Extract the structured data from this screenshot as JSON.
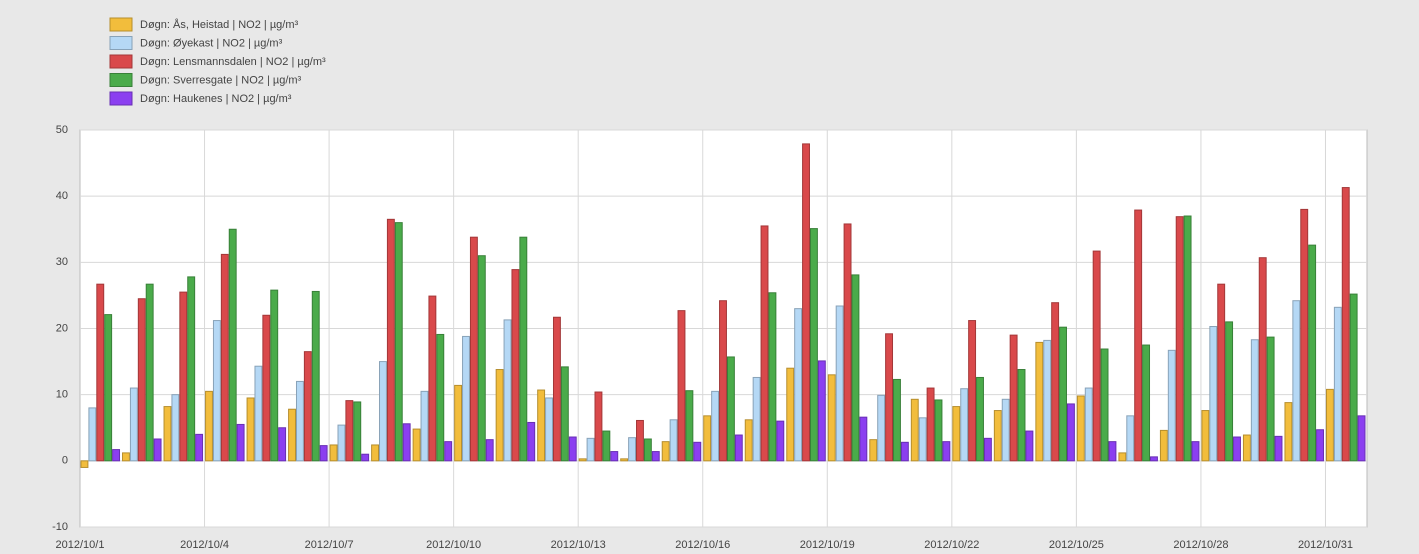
{
  "chart_data": {
    "type": "bar",
    "categories": [
      "2012/10/1",
      null,
      null,
      "2012/10/4",
      null,
      null,
      "2012/10/7",
      null,
      null,
      "2012/10/10",
      null,
      null,
      "2012/10/13",
      null,
      null,
      "2012/10/16",
      null,
      null,
      "2012/10/19",
      null,
      null,
      "2012/10/22",
      null,
      null,
      "2012/10/25",
      null,
      null,
      "2012/10/28",
      null,
      null,
      "2012/10/31"
    ],
    "series": [
      {
        "name": "Døgn: Ås, Heistad | NO2 | µg/m³",
        "color": "#f2bd3c",
        "values": [
          -1,
          1.2,
          8.2,
          10.5,
          9.5,
          7.8,
          2.4,
          2.4,
          4.8,
          11.4,
          13.8,
          10.7,
          0.3,
          0.3,
          2.9,
          6.8,
          6.2,
          14,
          13,
          3.2,
          9.3,
          8.2,
          7.6,
          17.9,
          9.8,
          1.2,
          4.6,
          7.6,
          3.9,
          8.8,
          10.8
        ]
      },
      {
        "name": "Døgn: Øyekast | NO2 | µg/m³",
        "color": "#b5d8f5",
        "values": [
          8,
          11,
          10,
          21.2,
          14.3,
          12,
          5.4,
          15,
          10.5,
          18.8,
          21.3,
          9.5,
          3.4,
          3.5,
          6.2,
          10.5,
          12.6,
          23,
          23.4,
          9.9,
          6.5,
          10.9,
          9.3,
          18.2,
          11,
          6.8,
          16.7,
          20.3,
          18.3,
          24.2,
          23.2
        ]
      },
      {
        "name": "Døgn: Lensmannsdalen | NO2 | µg/m³",
        "color": "#d9494b",
        "values": [
          26.7,
          24.5,
          25.5,
          31.2,
          22,
          16.5,
          9.1,
          36.5,
          24.9,
          33.8,
          28.9,
          21.7,
          10.4,
          6.1,
          22.7,
          24.2,
          35.5,
          47.9,
          35.8,
          19.2,
          11,
          21.2,
          19,
          23.9,
          31.7,
          37.9,
          36.9,
          26.7,
          30.7,
          38,
          41.3
        ]
      },
      {
        "name": "Døgn: Sverresgate | NO2 | µg/m³",
        "color": "#4aab4a",
        "values": [
          22.1,
          26.7,
          27.8,
          35,
          25.8,
          25.6,
          8.9,
          36,
          19.1,
          31,
          33.8,
          14.2,
          4.5,
          3.3,
          10.6,
          15.7,
          25.4,
          35.1,
          28.1,
          12.3,
          9.2,
          12.6,
          13.8,
          20.2,
          16.9,
          17.5,
          37,
          21,
          18.7,
          32.6,
          25.2
        ]
      },
      {
        "name": "Døgn: Haukenes | NO2 | µg/m³",
        "color": "#8b3ff0",
        "values": [
          1.7,
          3.3,
          4,
          5.5,
          5,
          2.3,
          1,
          5.6,
          2.9,
          3.2,
          5.8,
          3.6,
          1.4,
          1.4,
          2.8,
          3.9,
          6,
          15.1,
          6.6,
          2.8,
          2.9,
          3.4,
          4.5,
          8.6,
          2.9,
          0.6,
          2.9,
          3.6,
          3.7,
          4.7,
          6.8
        ]
      }
    ],
    "ylim": [
      -10,
      50
    ],
    "yticks": [
      -10,
      0,
      10,
      20,
      30,
      40,
      50
    ],
    "grid": true
  }
}
